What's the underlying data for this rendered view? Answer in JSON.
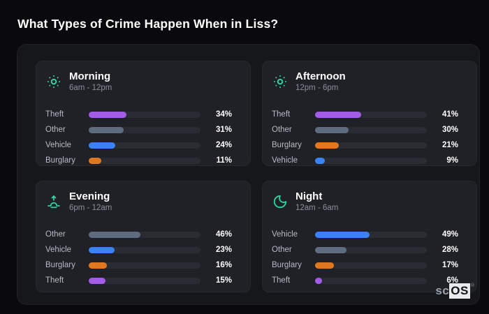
{
  "page": {
    "title": "What Types of Crime Happen When in Liss?"
  },
  "logo": {
    "prefix": "sc",
    "suffix": "OS",
    "registered": "®"
  },
  "colors": {
    "page_bg": "#0a0a0d",
    "panel_bg": "#16171b",
    "card_bg": "#1f2127",
    "track_bg": "#2a2c33",
    "accent": "#2ed3a3",
    "title_text": "#ffffff",
    "label_text": "#b6bbc4",
    "subtitle_text": "#8a8f99",
    "theft": "#a35ce6",
    "other": "#5f6c80",
    "vehicle": "#3b82f6",
    "burglary": "#e0781f"
  },
  "cards": [
    {
      "title": "Morning",
      "time_range": "6am - 12pm",
      "icon": "sun-icon",
      "rows": [
        {
          "label": "Theft",
          "value": 34,
          "pct": "34%",
          "color_key": "theft"
        },
        {
          "label": "Other",
          "value": 31,
          "pct": "31%",
          "color_key": "other"
        },
        {
          "label": "Vehicle",
          "value": 24,
          "pct": "24%",
          "color_key": "vehicle"
        },
        {
          "label": "Burglary",
          "value": 11,
          "pct": "11%",
          "color_key": "burglary"
        }
      ]
    },
    {
      "title": "Afternoon",
      "time_range": "12pm - 6pm",
      "icon": "sun-icon",
      "rows": [
        {
          "label": "Theft",
          "value": 41,
          "pct": "41%",
          "color_key": "theft"
        },
        {
          "label": "Other",
          "value": 30,
          "pct": "30%",
          "color_key": "other"
        },
        {
          "label": "Burglary",
          "value": 21,
          "pct": "21%",
          "color_key": "burglary"
        },
        {
          "label": "Vehicle",
          "value": 9,
          "pct": "9%",
          "color_key": "vehicle"
        }
      ]
    },
    {
      "title": "Evening",
      "time_range": "6pm - 12am",
      "icon": "sunrise-icon",
      "rows": [
        {
          "label": "Other",
          "value": 46,
          "pct": "46%",
          "color_key": "other"
        },
        {
          "label": "Vehicle",
          "value": 23,
          "pct": "23%",
          "color_key": "vehicle"
        },
        {
          "label": "Burglary",
          "value": 16,
          "pct": "16%",
          "color_key": "burglary"
        },
        {
          "label": "Theft",
          "value": 15,
          "pct": "15%",
          "color_key": "theft"
        }
      ]
    },
    {
      "title": "Night",
      "time_range": "12am - 6am",
      "icon": "moon-icon",
      "rows": [
        {
          "label": "Vehicle",
          "value": 49,
          "pct": "49%",
          "color_key": "vehicle"
        },
        {
          "label": "Other",
          "value": 28,
          "pct": "28%",
          "color_key": "other"
        },
        {
          "label": "Burglary",
          "value": 17,
          "pct": "17%",
          "color_key": "burglary"
        },
        {
          "label": "Theft",
          "value": 6,
          "pct": "6%",
          "color_key": "theft"
        }
      ]
    }
  ],
  "chart_data": [
    {
      "type": "bar",
      "orientation": "horizontal",
      "title": "Morning",
      "subtitle": "6am - 12pm",
      "categories": [
        "Theft",
        "Other",
        "Vehicle",
        "Burglary"
      ],
      "values": [
        34,
        31,
        24,
        11
      ],
      "unit": "%",
      "xlim": [
        0,
        100
      ],
      "grid": false,
      "legend": "none"
    },
    {
      "type": "bar",
      "orientation": "horizontal",
      "title": "Afternoon",
      "subtitle": "12pm - 6pm",
      "categories": [
        "Theft",
        "Other",
        "Burglary",
        "Vehicle"
      ],
      "values": [
        41,
        30,
        21,
        9
      ],
      "unit": "%",
      "xlim": [
        0,
        100
      ],
      "grid": false,
      "legend": "none"
    },
    {
      "type": "bar",
      "orientation": "horizontal",
      "title": "Evening",
      "subtitle": "6pm - 12am",
      "categories": [
        "Other",
        "Vehicle",
        "Burglary",
        "Theft"
      ],
      "values": [
        46,
        23,
        16,
        15
      ],
      "unit": "%",
      "xlim": [
        0,
        100
      ],
      "grid": false,
      "legend": "none"
    },
    {
      "type": "bar",
      "orientation": "horizontal",
      "title": "Night",
      "subtitle": "12am - 6am",
      "categories": [
        "Vehicle",
        "Other",
        "Burglary",
        "Theft"
      ],
      "values": [
        49,
        28,
        17,
        6
      ],
      "unit": "%",
      "xlim": [
        0,
        100
      ],
      "grid": false,
      "legend": "none"
    }
  ]
}
